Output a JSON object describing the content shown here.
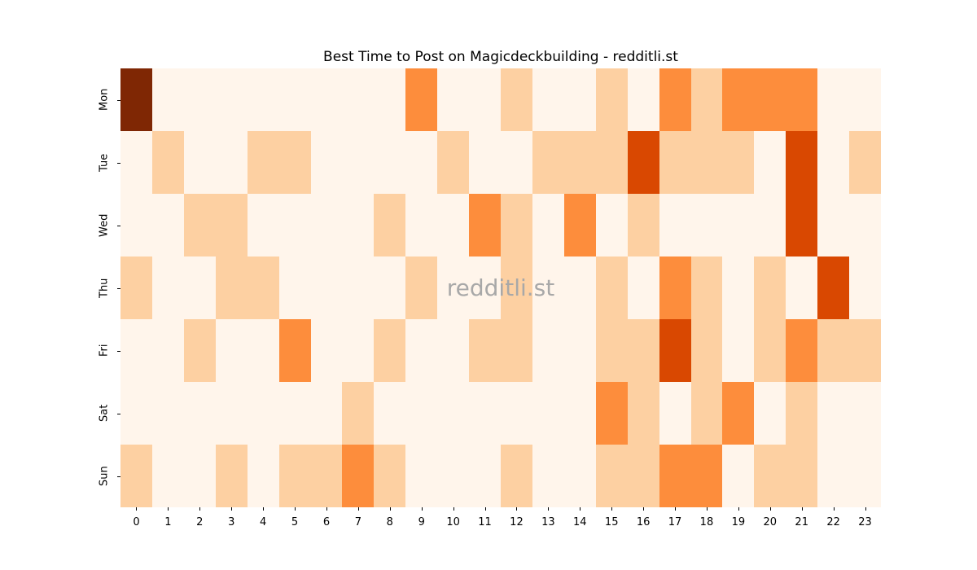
{
  "chart_data": {
    "type": "heatmap",
    "title": "Best Time to Post on Magicdeckbuilding - redditli.st",
    "watermark": "redditli.st",
    "xlabel": "",
    "ylabel": "",
    "x_labels": [
      "0",
      "1",
      "2",
      "3",
      "4",
      "5",
      "6",
      "7",
      "8",
      "9",
      "10",
      "11",
      "12",
      "13",
      "14",
      "15",
      "16",
      "17",
      "18",
      "19",
      "20",
      "21",
      "22",
      "23"
    ],
    "y_labels": [
      "Mon",
      "Tue",
      "Wed",
      "Thu",
      "Fri",
      "Sat",
      "Sun"
    ],
    "colormap": "Oranges",
    "colors": [
      "#fff5eb",
      "#fdd0a2",
      "#fd8d3c",
      "#d94801",
      "#7f2704"
    ],
    "value_range": [
      0,
      4
    ],
    "grid": false,
    "legend": "none",
    "values": [
      [
        4,
        0,
        0,
        0,
        0,
        0,
        0,
        0,
        0,
        2,
        0,
        0,
        1,
        0,
        0,
        1,
        0,
        2,
        1,
        2,
        2,
        2,
        0,
        0
      ],
      [
        0,
        1,
        0,
        0,
        1,
        1,
        0,
        0,
        0,
        0,
        1,
        0,
        0,
        1,
        1,
        1,
        3,
        1,
        1,
        1,
        0,
        3,
        0,
        1
      ],
      [
        0,
        0,
        1,
        1,
        0,
        0,
        0,
        0,
        1,
        0,
        0,
        2,
        1,
        0,
        2,
        0,
        1,
        0,
        0,
        0,
        0,
        3,
        0,
        0
      ],
      [
        1,
        0,
        0,
        1,
        1,
        0,
        0,
        0,
        0,
        1,
        0,
        0,
        1,
        0,
        0,
        1,
        0,
        2,
        1,
        0,
        1,
        0,
        3,
        0
      ],
      [
        0,
        0,
        1,
        0,
        0,
        2,
        0,
        0,
        1,
        0,
        0,
        1,
        1,
        0,
        0,
        1,
        1,
        3,
        1,
        0,
        1,
        2,
        1,
        1
      ],
      [
        0,
        0,
        0,
        0,
        0,
        0,
        0,
        1,
        0,
        0,
        0,
        0,
        0,
        0,
        0,
        2,
        1,
        0,
        1,
        2,
        0,
        1,
        0,
        0
      ],
      [
        1,
        0,
        0,
        1,
        0,
        1,
        1,
        2,
        1,
        0,
        0,
        0,
        1,
        0,
        0,
        1,
        1,
        2,
        2,
        0,
        1,
        1,
        0,
        0
      ]
    ]
  }
}
